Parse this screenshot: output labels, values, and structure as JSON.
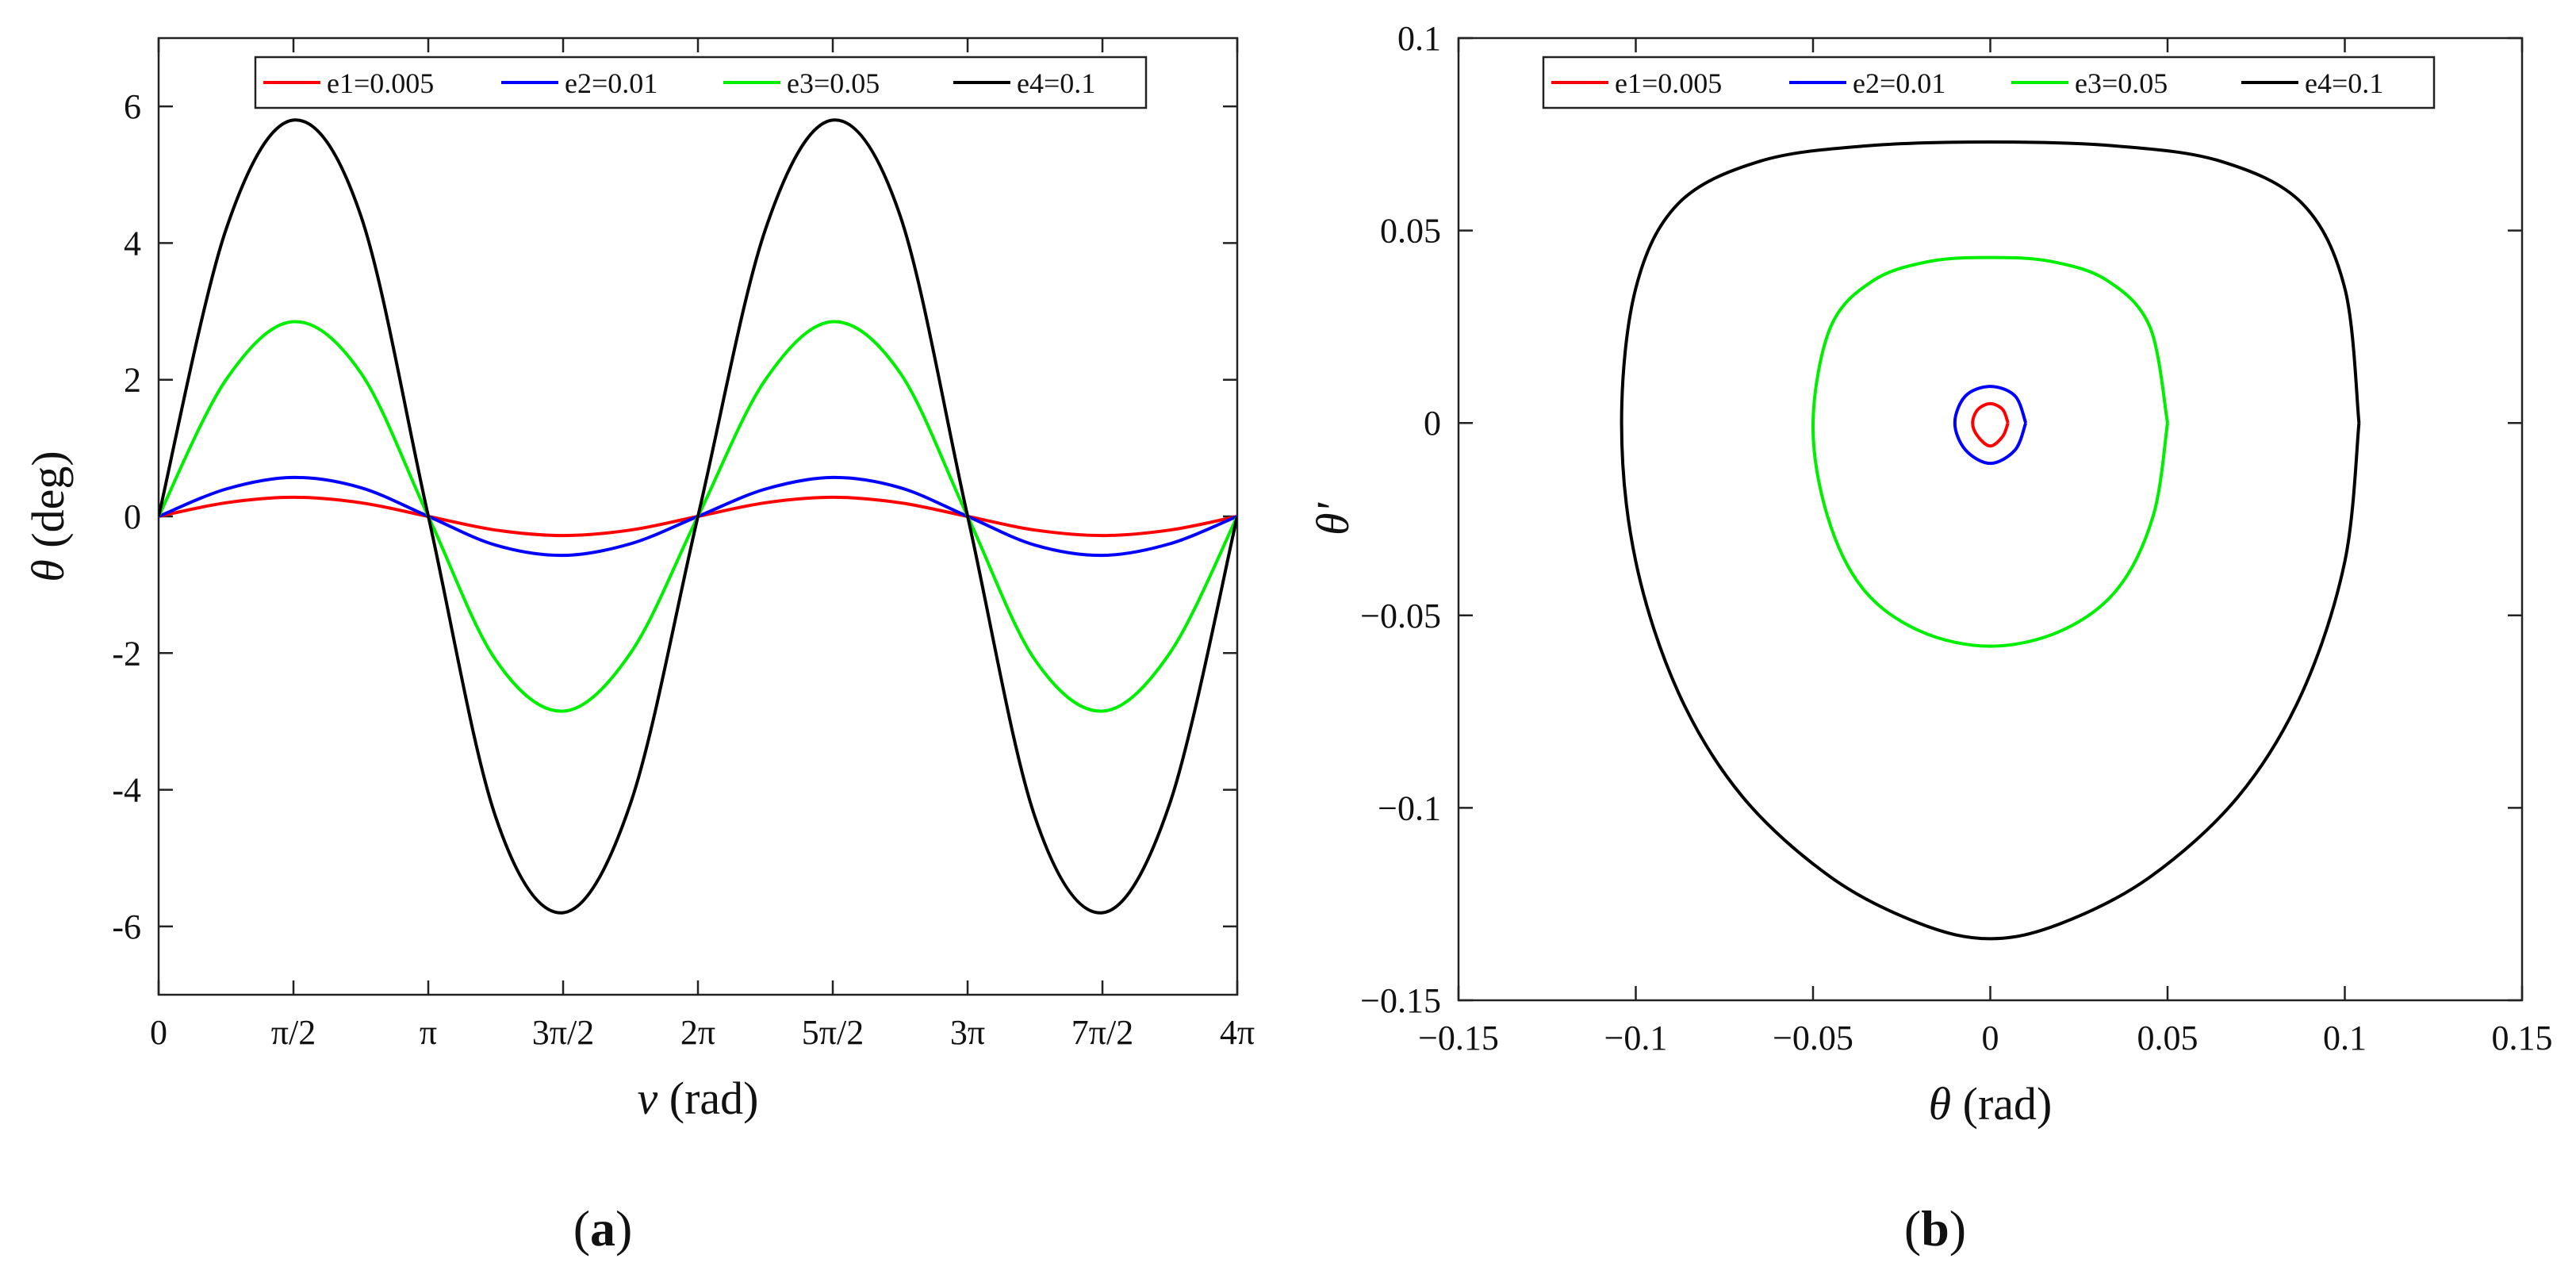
{
  "panel_labels": {
    "a": "a",
    "b": "b"
  },
  "colors": {
    "e1": "#ff0000",
    "e2": "#0000ff",
    "e3": "#00ee00",
    "e4": "#000000"
  },
  "chart_data": [
    {
      "id": "a",
      "type": "line",
      "title": "",
      "xlabel_symbol": "ν",
      "xlabel_unit": " (rad)",
      "ylabel_symbol": "θ",
      "ylabel_unit": " (deg)",
      "xlim": [
        0,
        12.566
      ],
      "ylim": [
        -7,
        7
      ],
      "x_ticks": [
        0,
        1.5708,
        3.1416,
        4.7124,
        6.2832,
        7.854,
        9.4248,
        10.9956,
        12.5664
      ],
      "x_tick_labels": [
        "0",
        "π/2",
        "π",
        "3π/2",
        "2π",
        "5π/2",
        "3π",
        "7π/2",
        "4π"
      ],
      "y_ticks": [
        -6,
        -4,
        -2,
        0,
        2,
        4,
        6
      ],
      "y_tick_labels": [
        "-6",
        "-4",
        "-2",
        "0",
        "2",
        "4",
        "6"
      ],
      "legend_position": "top-center",
      "x": [
        0,
        0.785,
        1.571,
        2.356,
        3.142,
        3.927,
        4.712,
        5.498,
        6.283,
        7.069,
        7.854,
        8.639,
        9.425,
        10.21,
        10.996,
        11.781,
        12.566
      ],
      "series": [
        {
          "name": "e1=0.005",
          "key": "e1",
          "values": [
            0,
            0.2,
            0.28,
            0.2,
            0,
            -0.2,
            -0.28,
            -0.2,
            0,
            0.2,
            0.28,
            0.2,
            0,
            -0.2,
            -0.28,
            -0.2,
            0
          ]
        },
        {
          "name": "e2=0.01",
          "key": "e2",
          "values": [
            0,
            0.4,
            0.57,
            0.42,
            0,
            -0.42,
            -0.57,
            -0.4,
            0,
            0.4,
            0.57,
            0.42,
            0,
            -0.42,
            -0.57,
            -0.4,
            0
          ]
        },
        {
          "name": "e3=0.05",
          "key": "e3",
          "values": [
            0,
            2.0,
            2.85,
            2.1,
            0,
            -2.1,
            -2.85,
            -2.0,
            0,
            2.0,
            2.85,
            2.1,
            0,
            -2.1,
            -2.85,
            -2.0,
            0
          ]
        },
        {
          "name": "e4=0.1",
          "key": "e4",
          "values": [
            0,
            4.2,
            5.8,
            4.4,
            0,
            -4.4,
            -5.8,
            -4.2,
            0,
            4.2,
            5.8,
            4.4,
            0,
            -4.4,
            -5.8,
            -4.2,
            0
          ]
        }
      ]
    },
    {
      "id": "b",
      "type": "line",
      "title": "",
      "xlabel_symbol": "θ",
      "xlabel_unit": " (rad)",
      "ylabel_symbol": "θ'",
      "ylabel_unit": "",
      "xlim": [
        -0.15,
        0.15
      ],
      "ylim": [
        -0.15,
        0.1
      ],
      "x_ticks": [
        -0.15,
        -0.1,
        -0.05,
        0,
        0.05,
        0.1,
        0.15
      ],
      "x_tick_labels": [
        "−0.15",
        "−0.1",
        "−0.05",
        "0",
        "0.05",
        "0.1",
        "0.15"
      ],
      "y_ticks": [
        -0.15,
        -0.1,
        -0.05,
        0,
        0.05,
        0.1
      ],
      "y_tick_labels": [
        "−0.15",
        "−0.1",
        "−0.05",
        "0",
        "0.05",
        "0.1"
      ],
      "legend_position": "top-center",
      "series": [
        {
          "name": "e1=0.005",
          "key": "e1",
          "x": [
            0.005,
            0.0035,
            0,
            -0.0035,
            -0.005,
            -0.0035,
            0,
            0.0035,
            0.005
          ],
          "y": [
            0,
            0.0035,
            0.005,
            0.0035,
            0,
            -0.0035,
            -0.006,
            -0.0035,
            0
          ]
        },
        {
          "name": "e2=0.01",
          "key": "e2",
          "x": [
            0.01,
            0.007,
            0,
            -0.007,
            -0.01,
            -0.007,
            0,
            0.007,
            0.01
          ],
          "y": [
            0,
            0.007,
            0.0095,
            0.007,
            0,
            -0.007,
            -0.0105,
            -0.007,
            0
          ]
        },
        {
          "name": "e3=0.05",
          "key": "e3",
          "x": [
            0.05,
            0.045,
            0.033,
            0.017,
            0,
            -0.017,
            -0.033,
            -0.045,
            -0.05,
            -0.046,
            -0.036,
            -0.02,
            0,
            0.02,
            0.036,
            0.046,
            0.05
          ],
          "y": [
            0,
            0.025,
            0.037,
            0.042,
            0.043,
            0.042,
            0.037,
            0.025,
            0,
            -0.024,
            -0.043,
            -0.054,
            -0.058,
            -0.054,
            -0.043,
            -0.024,
            0
          ]
        },
        {
          "name": "e4=0.1",
          "key": "e4",
          "x": [
            0.104,
            0.1,
            0.088,
            0.065,
            0.035,
            0,
            -0.035,
            -0.065,
            -0.088,
            -0.1,
            -0.104,
            -0.1,
            -0.088,
            -0.07,
            -0.045,
            -0.02,
            0,
            0.02,
            0.045,
            0.07,
            0.088,
            0.1,
            0.104
          ],
          "y": [
            0,
            0.035,
            0.057,
            0.068,
            0.072,
            0.073,
            0.072,
            0.068,
            0.057,
            0.035,
            0,
            -0.036,
            -0.07,
            -0.097,
            -0.118,
            -0.13,
            -0.134,
            -0.13,
            -0.118,
            -0.097,
            -0.07,
            -0.036,
            0
          ]
        }
      ]
    }
  ]
}
